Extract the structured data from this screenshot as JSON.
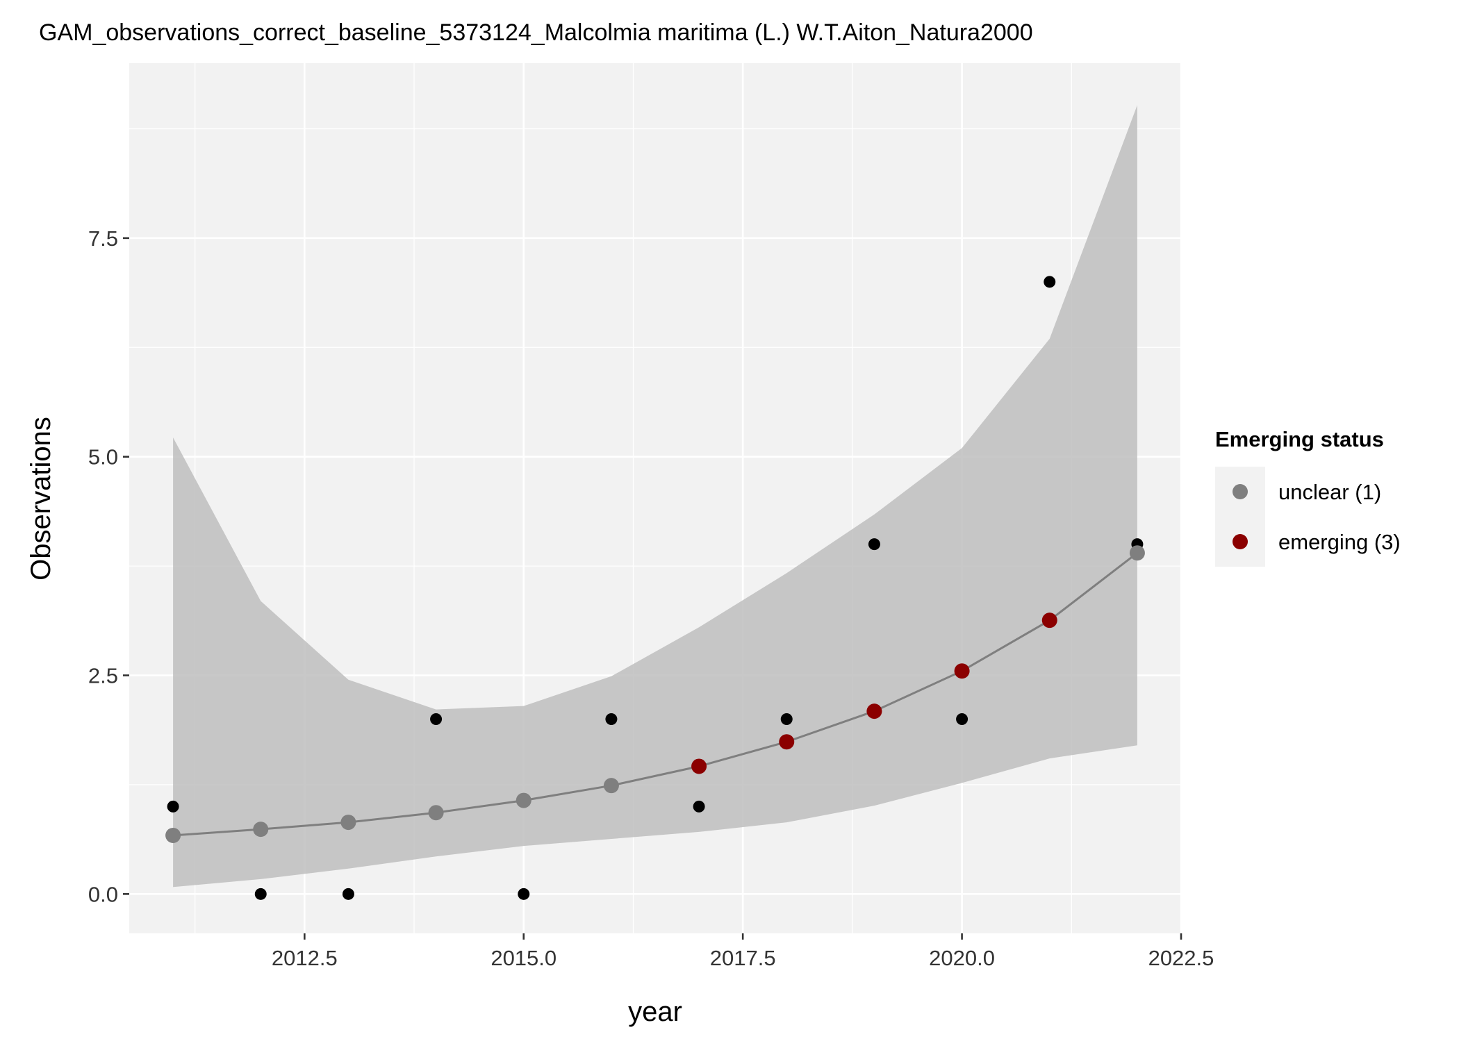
{
  "chart_data": {
    "type": "scatter",
    "title": "GAM_observations_correct_baseline_5373124_Malcolmia maritima (L.) W.T.Aiton_Natura2000",
    "xlabel": "year",
    "ylabel": "Observations",
    "xlim": [
      2010.5,
      2022.5
    ],
    "ylim": [
      -0.45,
      9.5
    ],
    "x_ticks": [
      2012.5,
      2015.0,
      2017.5,
      2020.0,
      2022.5
    ],
    "x_tick_labels": [
      "2012.5",
      "2015.0",
      "2017.5",
      "2020.0",
      "2022.5"
    ],
    "y_ticks": [
      0.0,
      2.5,
      5.0,
      7.5
    ],
    "y_tick_labels": [
      "0.0",
      "2.5",
      "5.0",
      "7.5"
    ],
    "grid": true,
    "legend_position": "right",
    "observed": {
      "x": [
        2011,
        2012,
        2013,
        2014,
        2015,
        2016,
        2017,
        2018,
        2019,
        2020,
        2021,
        2022
      ],
      "y": [
        1,
        0,
        0,
        2,
        0,
        2,
        1,
        2,
        4,
        2,
        7,
        4
      ]
    },
    "fit": {
      "x": [
        2011,
        2012,
        2013,
        2014,
        2015,
        2016,
        2017,
        2018,
        2019,
        2020,
        2021,
        2022
      ],
      "y": [
        0.67,
        0.74,
        0.82,
        0.93,
        1.07,
        1.24,
        1.46,
        1.74,
        2.09,
        2.55,
        3.13,
        3.9
      ],
      "lower": [
        0.08,
        0.17,
        0.29,
        0.43,
        0.55,
        0.63,
        0.71,
        0.82,
        1.01,
        1.27,
        1.55,
        1.7
      ],
      "upper": [
        5.22,
        3.35,
        2.45,
        2.11,
        2.15,
        2.49,
        3.05,
        3.67,
        4.34,
        5.1,
        6.35,
        9.02
      ],
      "status": [
        "unclear",
        "unclear",
        "unclear",
        "unclear",
        "unclear",
        "unclear",
        "emerging",
        "emerging",
        "emerging",
        "emerging",
        "emerging",
        "unclear"
      ]
    },
    "legend": {
      "title": "Emerging status",
      "entries": [
        {
          "key": "unclear",
          "label": "unclear (1)",
          "color": "#7f7f7f"
        },
        {
          "key": "emerging",
          "label": "emerging (3)",
          "color": "#8b0000"
        }
      ]
    },
    "colors": {
      "panel": "#f2f2f2",
      "grid": "#ffffff",
      "ribbon": "#bebebe",
      "line": "#7f7f7f",
      "observed": "#000000"
    }
  }
}
